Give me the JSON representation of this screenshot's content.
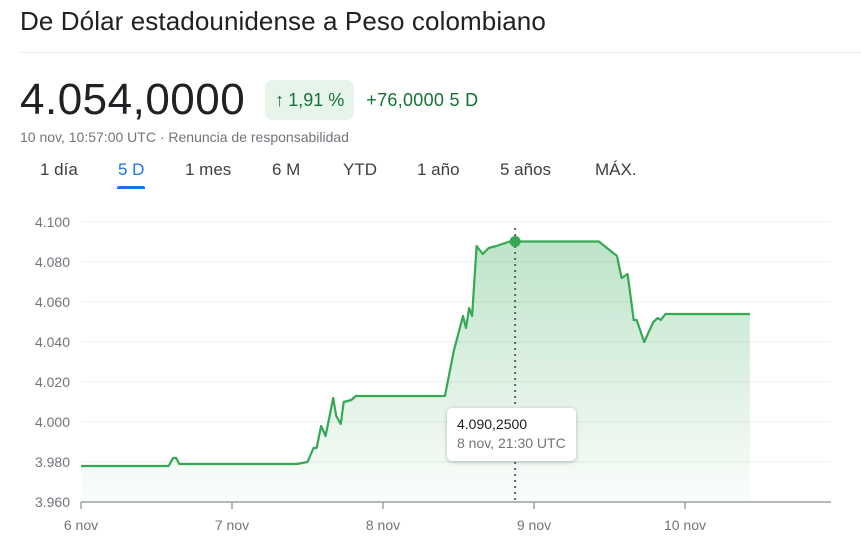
{
  "header": {
    "title": "De Dólar estadounidense a Peso colombiano"
  },
  "quote": {
    "price": "4.054,0000",
    "change_percent": "1,91 %",
    "change_direction": "up",
    "change_abs": "+76,0000 5 D",
    "timestamp": "10 nov, 10:57:00 UTC",
    "separator": "·",
    "disclaimer_link": "Renuncia de responsabilidad"
  },
  "colors": {
    "positive": "#137333",
    "positive_bg": "#e6f4ea",
    "line": "#34a853",
    "active_tab": "#1a73e8"
  },
  "tabs": [
    {
      "label": "1 día",
      "active": false
    },
    {
      "label": "5 D",
      "active": true
    },
    {
      "label": "1 mes",
      "active": false
    },
    {
      "label": "6 M",
      "active": false
    },
    {
      "label": "YTD",
      "active": false
    },
    {
      "label": "1 año",
      "active": false
    },
    {
      "label": "5 años",
      "active": false
    },
    {
      "label": "MÁX.",
      "active": false
    }
  ],
  "tooltip": {
    "value": "4.090,2500",
    "time": "8 nov, 21:30 UTC"
  },
  "chart_data": {
    "type": "area",
    "title": "De Dólar estadounidense a Peso colombiano (5 D)",
    "xlabel": "",
    "ylabel": "",
    "ylim": [
      3960,
      4100
    ],
    "yticks": [
      "4.100",
      "4.080",
      "4.060",
      "4.040",
      "4.020",
      "4.000",
      "3.980",
      "3.960"
    ],
    "xticks": [
      "6 nov",
      "7 nov",
      "8 nov",
      "9 nov",
      "10 nov"
    ],
    "grid": true,
    "legend": "none",
    "x_unit": "days since 6 nov 00:00",
    "series": [
      {
        "name": "USD/COP",
        "points": [
          [
            0.0,
            3978.0
          ],
          [
            0.58,
            3978.0
          ],
          [
            0.61,
            3982.0
          ],
          [
            0.63,
            3982.0
          ],
          [
            0.65,
            3979.0
          ],
          [
            1.0,
            3979.0
          ],
          [
            1.43,
            3979.0
          ],
          [
            1.5,
            3980.0
          ],
          [
            1.54,
            3987.0
          ],
          [
            1.56,
            3987.0
          ],
          [
            1.59,
            3998.0
          ],
          [
            1.62,
            3993.0
          ],
          [
            1.67,
            4012.0
          ],
          [
            1.69,
            4003.0
          ],
          [
            1.72,
            3999.0
          ],
          [
            1.74,
            4010.0
          ],
          [
            1.79,
            4011.0
          ],
          [
            1.82,
            4013.0
          ],
          [
            2.0,
            4013.0
          ],
          [
            2.41,
            4013.0
          ],
          [
            2.47,
            4036.0
          ],
          [
            2.53,
            4053.0
          ],
          [
            2.55,
            4047.0
          ],
          [
            2.57,
            4057.0
          ],
          [
            2.59,
            4053.0
          ],
          [
            2.62,
            4088.0
          ],
          [
            2.66,
            4084.0
          ],
          [
            2.7,
            4087.0
          ],
          [
            2.75,
            4088.0
          ],
          [
            2.79,
            4089.0
          ],
          [
            2.84,
            4090.25
          ],
          [
            3.0,
            4090.25
          ],
          [
            3.43,
            4090.25
          ],
          [
            3.55,
            4083.0
          ],
          [
            3.58,
            4072.0
          ],
          [
            3.62,
            4074.0
          ],
          [
            3.66,
            4051.0
          ],
          [
            3.68,
            4051.0
          ],
          [
            3.73,
            4040.0
          ],
          [
            3.79,
            4050.0
          ],
          [
            3.82,
            4052.0
          ],
          [
            3.84,
            4051.0
          ],
          [
            3.87,
            4054.0
          ],
          [
            4.0,
            4054.0
          ],
          [
            4.43,
            4054.0
          ]
        ]
      }
    ],
    "highlight": {
      "x": 2.875,
      "y": 4090.25,
      "label": "4.090,2500",
      "time": "8 nov, 21:30 UTC"
    }
  }
}
